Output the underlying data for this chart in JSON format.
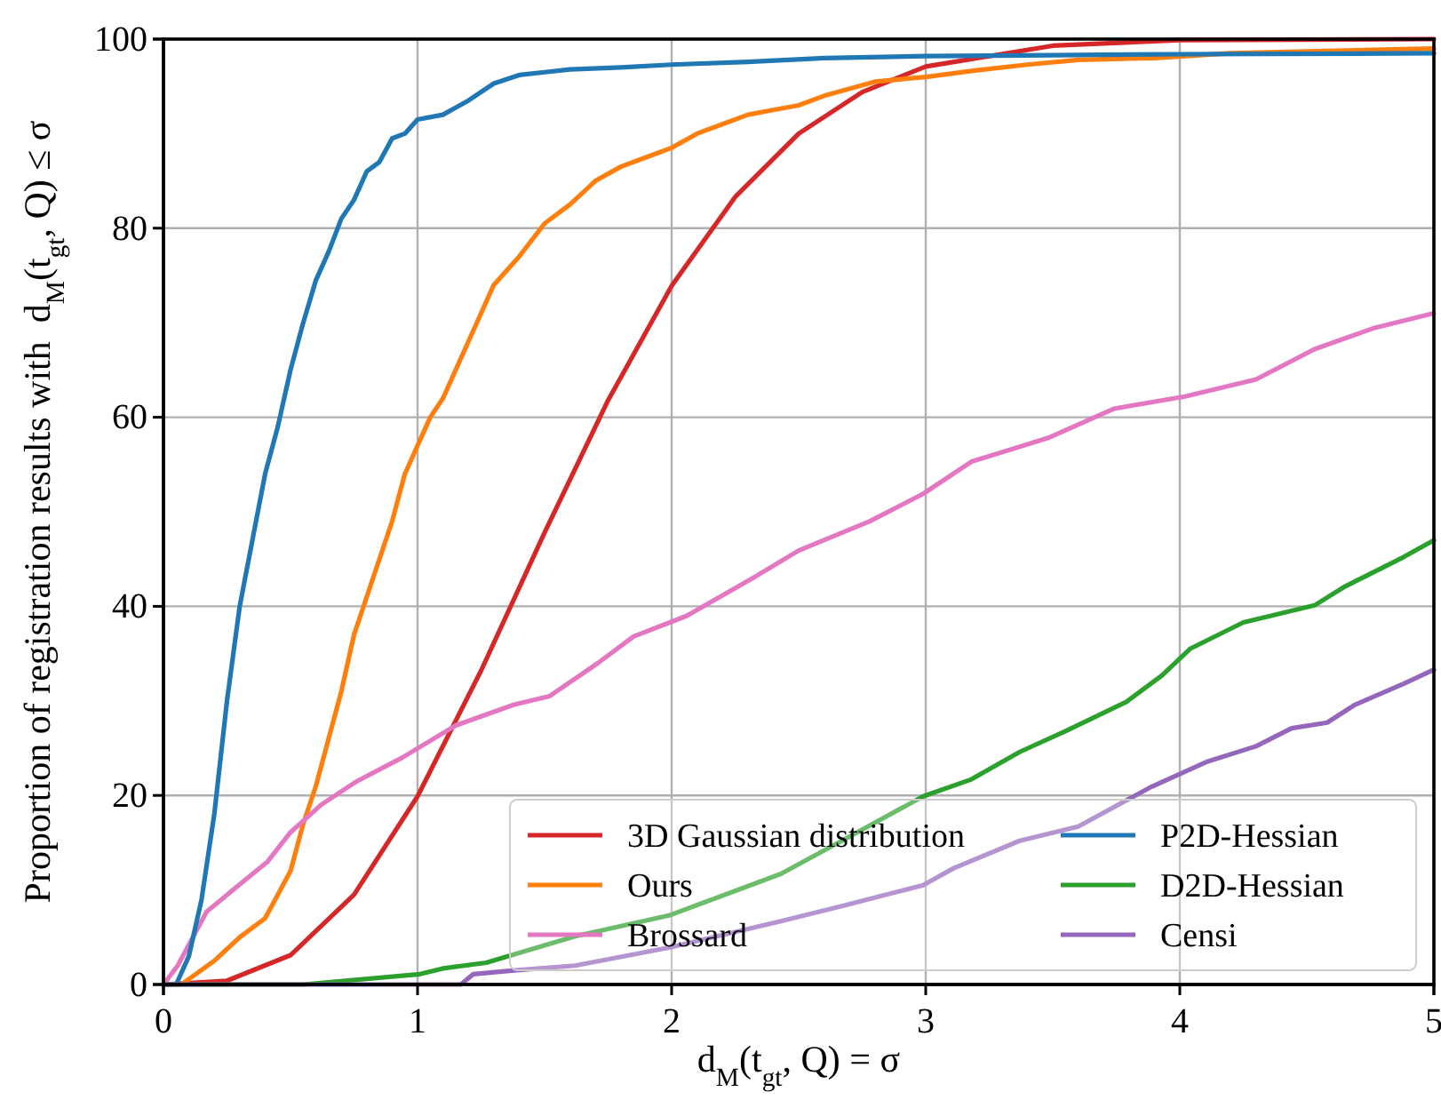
{
  "chart_data": {
    "type": "line",
    "xlabel": "d$_{M}$(t$_{gt}$, Q) = σ",
    "ylabel": "Proportion of registration results with  d$_{M}$(t$_{gt}$, Q) ≤ σ",
    "xlim": [
      0,
      5
    ],
    "ylim": [
      0,
      100
    ],
    "xticks": [
      0,
      1,
      2,
      3,
      4,
      5
    ],
    "yticks": [
      0,
      20,
      40,
      60,
      80,
      100
    ],
    "grid": true,
    "legend": "bottom right",
    "marker": "none",
    "line_style": "solid",
    "series": [
      {
        "name": "3D Gaussian distribution",
        "color": "#d62728",
        "x": [
          0,
          0.25,
          0.5,
          0.75,
          1.0,
          1.25,
          1.5,
          1.75,
          2.0,
          2.25,
          2.5,
          2.75,
          3.0,
          3.5,
          4.0,
          5.0
        ],
        "values": [
          0,
          0.4,
          3.1,
          9.5,
          19.9,
          33.2,
          47.8,
          61.8,
          73.9,
          83.3,
          90.0,
          94.4,
          97.1,
          99.3,
          99.9,
          100
        ]
      },
      {
        "name": "Ours",
        "color": "#ff7f0e",
        "x": [
          0,
          0.07,
          0.2,
          0.3,
          0.4,
          0.5,
          0.55,
          0.6,
          0.65,
          0.7,
          0.75,
          0.8,
          0.9,
          0.95,
          1.0,
          1.05,
          1.1,
          1.2,
          1.3,
          1.4,
          1.5,
          1.6,
          1.7,
          1.8,
          1.9,
          2.0,
          2.1,
          2.2,
          2.3,
          2.4,
          2.5,
          2.6,
          2.8,
          3.0,
          3.2,
          3.4,
          3.6,
          3.9,
          4.2,
          4.5,
          5.0
        ],
        "values": [
          0,
          0,
          2.5,
          5,
          7,
          12,
          17,
          21,
          26,
          31,
          37,
          41,
          49,
          54,
          57,
          60,
          62,
          68,
          74,
          77,
          80.5,
          82.5,
          85,
          86.5,
          87.5,
          88.5,
          90,
          91,
          92,
          92.5,
          93,
          94,
          95.5,
          96,
          96.7,
          97.3,
          97.8,
          98,
          98.5,
          98.7,
          99
        ]
      },
      {
        "name": "Brossard",
        "color": "#e377c2",
        "x": [
          0,
          0.056,
          0.17,
          0.31,
          0.41,
          0.5,
          0.62,
          0.755,
          0.94,
          1.15,
          1.38,
          1.52,
          1.71,
          1.85,
          2.06,
          2.32,
          2.5,
          2.78,
          2.99,
          3.18,
          3.48,
          3.74,
          4.02,
          4.3,
          4.53,
          4.76,
          5.0
        ],
        "values": [
          0,
          2,
          7.7,
          10.8,
          13,
          16.1,
          19,
          21.4,
          24,
          27.4,
          29.6,
          30.5,
          34,
          36.8,
          39,
          43,
          45.9,
          49,
          51.9,
          55.3,
          57.8,
          60.9,
          62.2,
          64,
          67.2,
          69.4,
          71
        ]
      },
      {
        "name": "P2D-Hessian",
        "color": "#1f77b4",
        "x": [
          0,
          0.05,
          0.1,
          0.15,
          0.2,
          0.25,
          0.3,
          0.35,
          0.4,
          0.45,
          0.5,
          0.55,
          0.6,
          0.65,
          0.7,
          0.75,
          0.8,
          0.85,
          0.9,
          0.95,
          1.0,
          1.1,
          1.2,
          1.3,
          1.4,
          1.5,
          1.6,
          1.8,
          2.0,
          2.3,
          2.6,
          3.0,
          3.5,
          4.0,
          5.0
        ],
        "values": [
          0,
          0,
          3,
          9,
          18,
          30,
          40,
          47,
          54,
          59,
          65,
          70,
          74.5,
          77.5,
          81,
          83,
          86,
          87,
          89.5,
          90,
          91.5,
          92,
          93.5,
          95.3,
          96.2,
          96.5,
          96.8,
          97,
          97.3,
          97.6,
          98,
          98.2,
          98.3,
          98.4,
          98.5
        ]
      },
      {
        "name": "D2D-Hessian",
        "color": "#2ca02c",
        "x": [
          0,
          0.55,
          1.01,
          1.1,
          1.27,
          1.62,
          1.99,
          2.43,
          2.67,
          2.99,
          3.18,
          3.37,
          3.55,
          3.79,
          3.93,
          4.04,
          4.25,
          4.53,
          4.65,
          4.88,
          5.0
        ],
        "values": [
          0,
          0,
          1.1,
          1.7,
          2.3,
          5.1,
          7.3,
          11.7,
          15.2,
          19.9,
          21.7,
          24.6,
          26.8,
          29.9,
          32.7,
          35.5,
          38.3,
          40.1,
          42.1,
          45.2,
          47
        ]
      },
      {
        "name": "Censi",
        "color": "#9467bd",
        "x": [
          0,
          1.17,
          1.22,
          1.38,
          1.62,
          1.99,
          2.43,
          2.67,
          2.99,
          3.11,
          3.37,
          3.6,
          3.88,
          4.11,
          4.3,
          4.44,
          4.58,
          4.69,
          4.88,
          5.0
        ],
        "values": [
          0,
          0,
          1.1,
          1.5,
          2,
          3.9,
          6.7,
          8.3,
          10.5,
          12.3,
          15.2,
          16.7,
          20.8,
          23.6,
          25.2,
          27.1,
          27.7,
          29.6,
          31.8,
          33.3
        ]
      }
    ]
  }
}
